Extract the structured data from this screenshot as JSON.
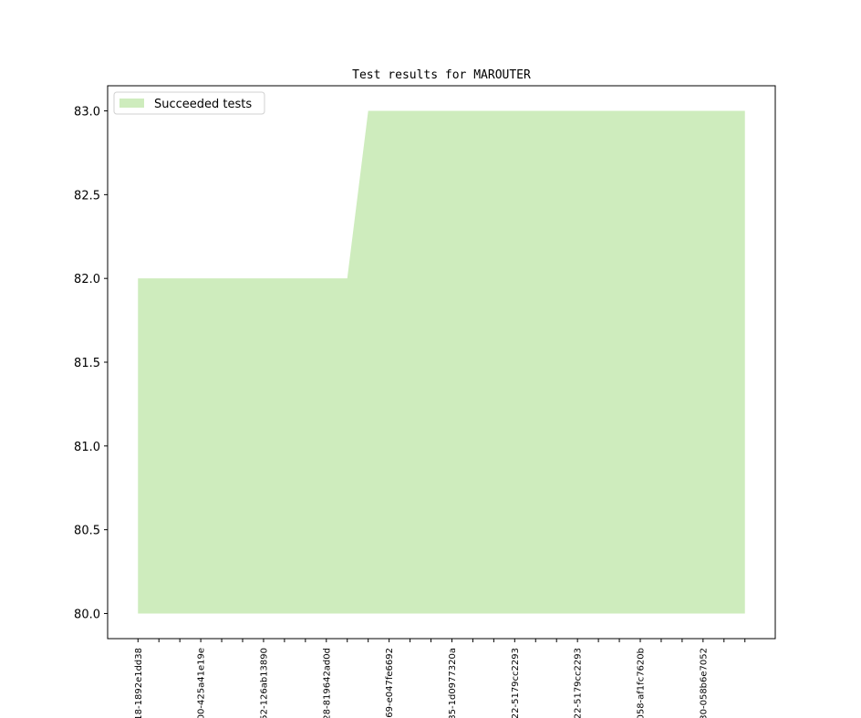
{
  "chart_data": {
    "type": "area",
    "title": "Test results for MAROUTER",
    "categories": [
      "18-1892e1dd38",
      null,
      null,
      "00-425a41e19e",
      null,
      null,
      "52-126ab13890",
      null,
      null,
      "28-819642ad0d",
      null,
      null,
      "69-e047fe6692",
      null,
      null,
      "85-1d0977320a",
      null,
      null,
      "22-5179cc2293",
      null,
      null,
      "22-5179cc2293",
      null,
      null,
      "058-af1fc7620b",
      null,
      null,
      "30-058b6e7052",
      null,
      null
    ],
    "series": [
      {
        "name": "Succeeded tests",
        "color": "#ceecbd",
        "values": [
          82,
          82,
          82,
          82,
          82,
          82,
          82,
          82,
          82,
          82,
          82,
          83,
          83,
          83,
          83,
          83,
          83,
          83,
          83,
          83,
          83,
          83,
          83,
          83,
          83,
          83,
          83,
          83,
          83,
          83
        ]
      }
    ],
    "baseline": 80,
    "xlim": [
      -1.45,
      30.45
    ],
    "ylim": [
      79.85,
      83.15
    ],
    "yticks": [
      {
        "value": 80,
        "label": "80.0"
      },
      80.5,
      {
        "value": 81,
        "label": "81.0"
      },
      81.5,
      {
        "value": 82,
        "label": "82.0"
      },
      82.5,
      {
        "value": 83,
        "label": "83.0"
      }
    ],
    "legend": "upper left"
  }
}
